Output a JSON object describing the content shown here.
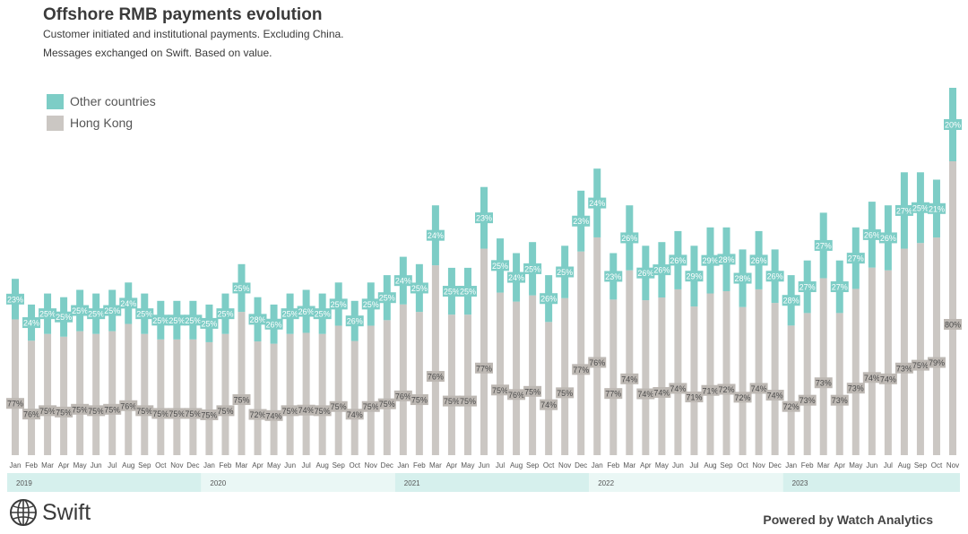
{
  "title": "Offshore RMB payments evolution",
  "subtitle_line1": "Customer initiated and institutional payments. Excluding China.",
  "subtitle_line2": "Messages exchanged on Swift. Based on value.",
  "colors": {
    "other": "#7dcdc6",
    "hk": "#cbc7c3",
    "year_band_a": "#d6f0ed",
    "year_band_b": "#eaf7f5",
    "label_hk_bg": "#bdb8b3",
    "text": "#3a3a3a"
  },
  "footer": {
    "logo_text": "Swift",
    "logo_icon": "globe-icon",
    "powered_by": "Powered by Watch Analytics"
  },
  "chart_data": {
    "type": "bar",
    "stacked": true,
    "unit": "share of total (%)",
    "months": [
      "Jan",
      "Feb",
      "Mar",
      "Apr",
      "May",
      "Jun",
      "Jul",
      "Aug",
      "Sep",
      "Oct",
      "Nov",
      "Dec",
      "Jan",
      "Feb",
      "Mar",
      "Apr",
      "May",
      "Jun",
      "Jul",
      "Aug",
      "Sep",
      "Oct",
      "Nov",
      "Dec",
      "Jan",
      "Feb",
      "Mar",
      "Apr",
      "May",
      "Jun",
      "Jul",
      "Aug",
      "Sep",
      "Oct",
      "Nov",
      "Dec",
      "Jan",
      "Feb",
      "Mar",
      "Apr",
      "May",
      "Jun",
      "Jul",
      "Aug",
      "Sep",
      "Oct",
      "Nov",
      "Dec",
      "Jan",
      "Feb",
      "Mar",
      "Apr",
      "May",
      "Jun",
      "Jul",
      "Aug",
      "Sep",
      "Oct",
      "Nov"
    ],
    "years": [
      {
        "label": "2019",
        "start": 0,
        "count": 12
      },
      {
        "label": "2020",
        "start": 12,
        "count": 12
      },
      {
        "label": "2021",
        "start": 24,
        "count": 12
      },
      {
        "label": "2022",
        "start": 36,
        "count": 12
      },
      {
        "label": "2023",
        "start": 48,
        "count": 11
      }
    ],
    "total_relative": [
      0.48,
      0.41,
      0.44,
      0.43,
      0.45,
      0.44,
      0.45,
      0.47,
      0.44,
      0.42,
      0.42,
      0.42,
      0.41,
      0.44,
      0.52,
      0.43,
      0.41,
      0.44,
      0.45,
      0.44,
      0.47,
      0.42,
      0.47,
      0.49,
      0.54,
      0.52,
      0.68,
      0.51,
      0.51,
      0.73,
      0.59,
      0.55,
      0.58,
      0.49,
      0.57,
      0.72,
      0.78,
      0.55,
      0.68,
      0.57,
      0.58,
      0.61,
      0.57,
      0.62,
      0.62,
      0.56,
      0.61,
      0.56,
      0.49,
      0.53,
      0.66,
      0.53,
      0.62,
      0.69,
      0.68,
      0.77,
      0.77,
      0.75,
      1.0
    ],
    "series": [
      {
        "name": "Other countries",
        "shares": [
          23,
          24,
          25,
          25,
          25,
          25,
          25,
          24,
          25,
          25,
          25,
          25,
          25,
          25,
          25,
          28,
          26,
          25,
          26,
          25,
          25,
          26,
          25,
          25,
          24,
          25,
          24,
          25,
          25,
          23,
          25,
          24,
          25,
          26,
          25,
          23,
          24,
          23,
          26,
          26,
          26,
          26,
          29,
          29,
          28,
          28,
          26,
          26,
          28,
          27,
          27,
          27,
          27,
          26,
          26,
          27,
          25,
          21,
          20
        ]
      },
      {
        "name": "Hong Kong",
        "shares": [
          77,
          76,
          75,
          75,
          75,
          75,
          75,
          76,
          75,
          75,
          75,
          75,
          75,
          75,
          75,
          72,
          74,
          75,
          74,
          75,
          75,
          74,
          75,
          75,
          76,
          75,
          76,
          75,
          75,
          77,
          75,
          76,
          75,
          74,
          75,
          77,
          76,
          77,
          74,
          74,
          74,
          74,
          71,
          71,
          72,
          72,
          74,
          74,
          72,
          73,
          73,
          73,
          73,
          74,
          74,
          73,
          75,
          79,
          80
        ]
      }
    ]
  }
}
